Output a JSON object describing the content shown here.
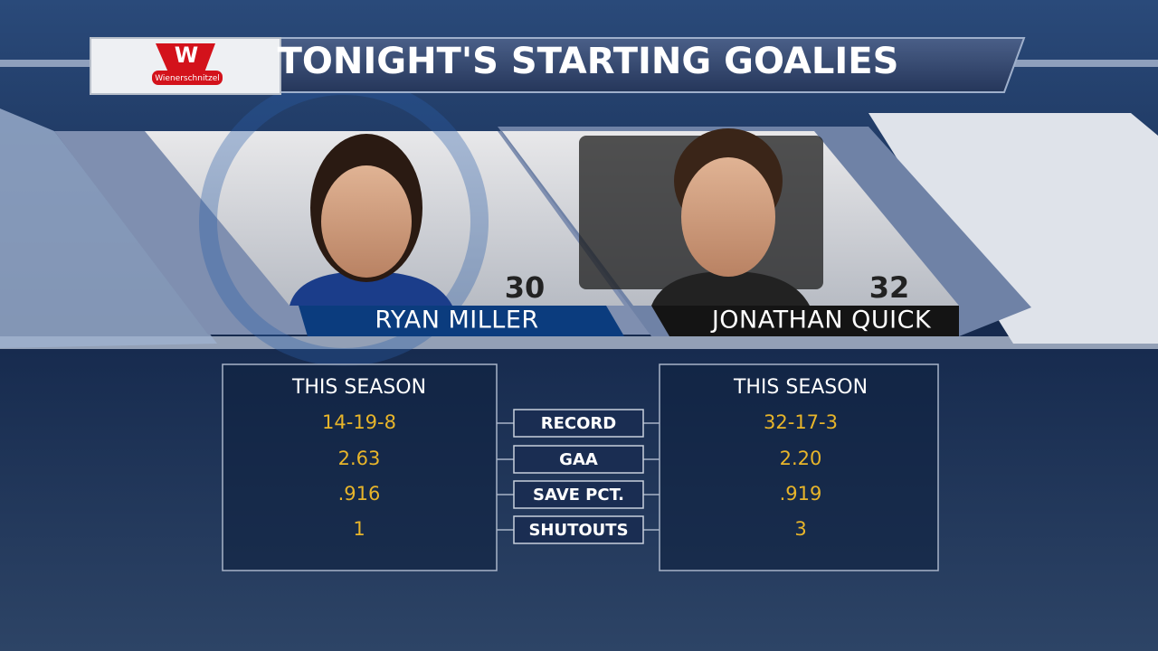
{
  "sponsor": {
    "letter": "W",
    "name": "Wienerschnitzel"
  },
  "title": "TONIGHT'S STARTING GOALIES",
  "stat_labels": [
    "RECORD",
    "GAA",
    "SAVE PCT.",
    "SHUTOUTS"
  ],
  "players": [
    {
      "name": "RYAN MILLER",
      "number": 30,
      "season_label": "THIS SEASON",
      "stats": [
        "14-19-8",
        "2.63",
        ".916",
        1
      ]
    },
    {
      "name": "JONATHAN QUICK",
      "number": 32,
      "season_label": "THIS SEASON",
      "stats": [
        "32-17-3",
        "2.20",
        ".919",
        3
      ]
    }
  ]
}
